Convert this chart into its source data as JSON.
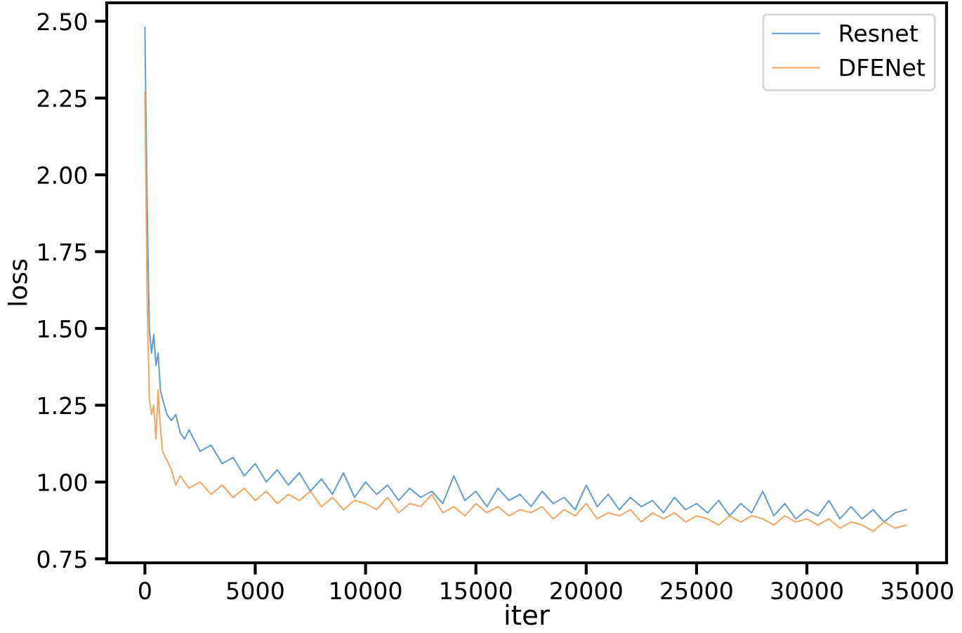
{
  "chart_data": {
    "type": "line",
    "xlabel": "iter",
    "ylabel": "loss",
    "xlim": [
      -1730,
      36330
    ],
    "ylim": [
      0.737,
      2.56
    ],
    "xticks": [
      0,
      5000,
      10000,
      15000,
      20000,
      25000,
      30000,
      35000
    ],
    "yticks": [
      {
        "value": 0.75,
        "label": "0.75"
      },
      {
        "value": 1.0,
        "label": "1.00"
      },
      {
        "value": 1.25,
        "label": "1.25"
      },
      {
        "value": 1.5,
        "label": "1.50"
      },
      {
        "value": 1.75,
        "label": "1.75"
      },
      {
        "value": 2.0,
        "label": "2.00"
      },
      {
        "value": 2.25,
        "label": "2.25"
      },
      {
        "value": 2.5,
        "label": "2.50"
      }
    ],
    "grid": false,
    "legend": "top right",
    "marker": "none",
    "line_style": "solid",
    "x": [
      0,
      100,
      200,
      300,
      400,
      500,
      600,
      700,
      800,
      1000,
      1200,
      1400,
      1600,
      1800,
      2000,
      2500,
      3000,
      3500,
      4000,
      4500,
      5000,
      5500,
      6000,
      6500,
      7000,
      7500,
      8000,
      8500,
      9000,
      9500,
      10000,
      10500,
      11000,
      11500,
      12000,
      12500,
      13000,
      13500,
      14000,
      14500,
      15000,
      15500,
      16000,
      16500,
      17000,
      17500,
      18000,
      18500,
      19000,
      19500,
      20000,
      20500,
      21000,
      21500,
      22000,
      22500,
      23000,
      23500,
      24000,
      24500,
      25000,
      25500,
      26000,
      26500,
      27000,
      27500,
      28000,
      28500,
      29000,
      29500,
      30000,
      30500,
      31000,
      31500,
      32000,
      32500,
      33000,
      33500,
      34000,
      34500
    ],
    "series": [
      {
        "name": "Resnet",
        "color": "#5b9bd0",
        "values": [
          2.48,
          1.9,
          1.5,
          1.42,
          1.48,
          1.38,
          1.42,
          1.3,
          1.27,
          1.22,
          1.2,
          1.22,
          1.16,
          1.14,
          1.17,
          1.1,
          1.12,
          1.06,
          1.08,
          1.02,
          1.06,
          1.0,
          1.04,
          0.99,
          1.03,
          0.97,
          1.01,
          0.96,
          1.03,
          0.95,
          1.0,
          0.96,
          0.99,
          0.94,
          0.98,
          0.95,
          0.97,
          0.93,
          1.02,
          0.94,
          0.97,
          0.92,
          0.98,
          0.94,
          0.96,
          0.92,
          0.97,
          0.93,
          0.95,
          0.91,
          0.99,
          0.92,
          0.96,
          0.91,
          0.95,
          0.92,
          0.94,
          0.9,
          0.95,
          0.91,
          0.93,
          0.9,
          0.94,
          0.89,
          0.93,
          0.9,
          0.97,
          0.89,
          0.93,
          0.88,
          0.91,
          0.89,
          0.94,
          0.88,
          0.92,
          0.88,
          0.91,
          0.87,
          0.9,
          0.91
        ]
      },
      {
        "name": "DFENet",
        "color": "#f5a45e",
        "values": [
          2.27,
          1.6,
          1.27,
          1.22,
          1.25,
          1.14,
          1.3,
          1.18,
          1.1,
          1.07,
          1.04,
          0.99,
          1.02,
          1.0,
          0.98,
          1.0,
          0.96,
          0.99,
          0.95,
          0.98,
          0.94,
          0.97,
          0.93,
          0.96,
          0.94,
          0.97,
          0.92,
          0.95,
          0.91,
          0.94,
          0.93,
          0.91,
          0.95,
          0.9,
          0.93,
          0.92,
          0.96,
          0.9,
          0.92,
          0.89,
          0.93,
          0.9,
          0.92,
          0.89,
          0.91,
          0.9,
          0.92,
          0.88,
          0.91,
          0.89,
          0.93,
          0.88,
          0.9,
          0.89,
          0.91,
          0.87,
          0.9,
          0.88,
          0.9,
          0.87,
          0.89,
          0.88,
          0.86,
          0.89,
          0.87,
          0.89,
          0.88,
          0.86,
          0.89,
          0.87,
          0.88,
          0.86,
          0.88,
          0.85,
          0.87,
          0.86,
          0.84,
          0.87,
          0.85,
          0.86
        ]
      }
    ]
  }
}
